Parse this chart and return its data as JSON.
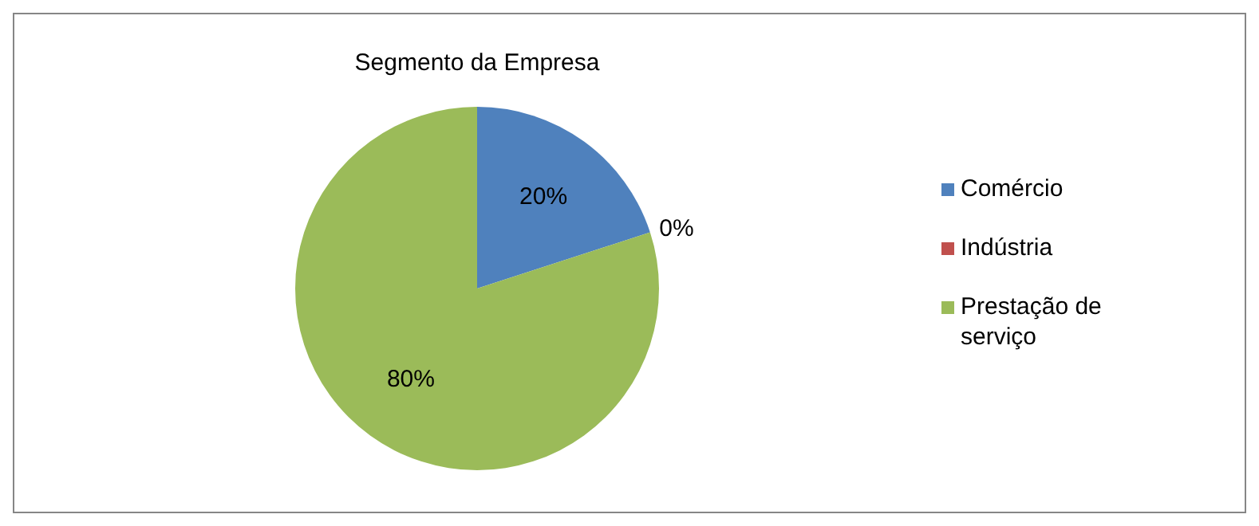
{
  "chart_data": {
    "type": "pie",
    "title": "Segmento da Empresa",
    "categories": [
      "Comércio",
      "Indústria",
      "Prestação de serviço"
    ],
    "values": [
      20,
      0,
      80
    ],
    "colors": [
      "#4f81bd",
      "#c0504d",
      "#9bbb59"
    ],
    "value_labels": [
      "20%",
      "0%",
      "80%"
    ],
    "legend": "right"
  }
}
